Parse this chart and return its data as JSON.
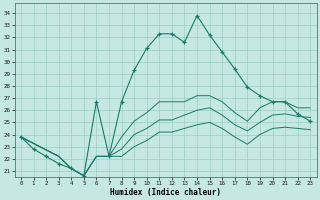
{
  "xlabel": "Humidex (Indice chaleur)",
  "bg_color": "#c5e8e2",
  "grid_color": "#9ecec6",
  "line_color": "#1a7a6a",
  "xlim": [
    -0.5,
    23.5
  ],
  "ylim": [
    20.5,
    34.8
  ],
  "xticks": [
    0,
    1,
    2,
    3,
    4,
    5,
    6,
    7,
    8,
    9,
    10,
    11,
    12,
    13,
    14,
    15,
    16,
    17,
    18,
    19,
    20,
    21,
    22,
    23
  ],
  "yticks": [
    21,
    22,
    23,
    24,
    25,
    26,
    27,
    28,
    29,
    30,
    31,
    32,
    33,
    34
  ],
  "main_x": [
    0,
    1,
    2,
    3,
    4,
    5,
    6,
    7,
    8,
    9,
    10,
    11,
    12,
    13,
    14,
    15,
    16,
    17,
    18,
    19,
    20,
    21,
    22,
    23
  ],
  "main_y": [
    23.8,
    22.8,
    22.2,
    21.6,
    21.2,
    20.6,
    26.7,
    22.2,
    26.7,
    29.3,
    31.1,
    32.3,
    32.3,
    31.6,
    33.8,
    32.2,
    30.8,
    29.4,
    27.9,
    27.2,
    26.7,
    26.7,
    25.7,
    25.1
  ],
  "upper_x": [
    0,
    3,
    4,
    5,
    6,
    7,
    8,
    9,
    10,
    11,
    12,
    13,
    14,
    15,
    16,
    17,
    18,
    19,
    20,
    21,
    22,
    23
  ],
  "upper_y": [
    23.8,
    22.2,
    21.2,
    20.6,
    22.2,
    22.2,
    23.8,
    25.1,
    25.8,
    26.7,
    26.7,
    26.7,
    27.2,
    27.2,
    26.7,
    25.8,
    25.1,
    26.2,
    26.7,
    26.7,
    26.2,
    26.2
  ],
  "mid_x": [
    0,
    3,
    4,
    5,
    6,
    7,
    8,
    9,
    10,
    11,
    12,
    13,
    14,
    15,
    16,
    17,
    18,
    19,
    20,
    21,
    22,
    23
  ],
  "mid_y": [
    23.8,
    22.2,
    21.2,
    20.6,
    22.2,
    22.2,
    22.8,
    24.0,
    24.5,
    25.2,
    25.2,
    25.6,
    26.0,
    26.2,
    25.6,
    24.8,
    24.3,
    25.0,
    25.6,
    25.7,
    25.5,
    25.4
  ],
  "lower_x": [
    0,
    3,
    4,
    5,
    6,
    7,
    8,
    9,
    10,
    11,
    12,
    13,
    14,
    15,
    16,
    17,
    18,
    19,
    20,
    21,
    22,
    23
  ],
  "lower_y": [
    23.8,
    22.2,
    21.2,
    20.6,
    22.2,
    22.2,
    22.2,
    23.0,
    23.5,
    24.2,
    24.2,
    24.5,
    24.8,
    25.0,
    24.5,
    23.8,
    23.2,
    24.0,
    24.5,
    24.6,
    24.5,
    24.4
  ]
}
